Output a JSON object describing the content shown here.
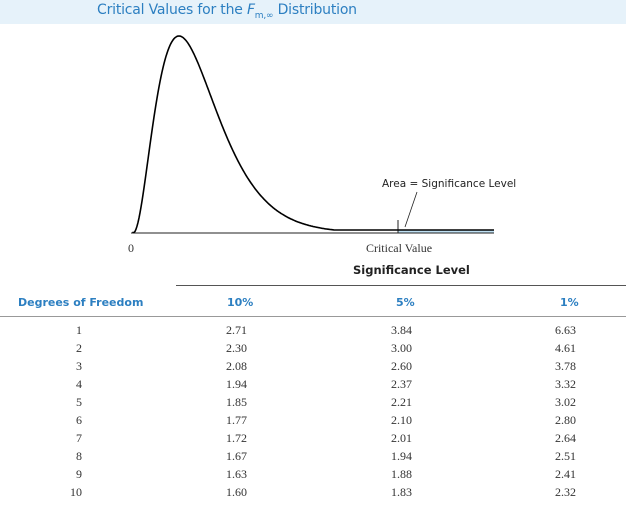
{
  "title": {
    "prefix": "Critical Values for the ",
    "symbol": "F",
    "subscript": "m,∞",
    "suffix": " Distribution"
  },
  "figure": {
    "zero_label": "0",
    "critical_value_label": "Critical Value",
    "area_label": "Area = Significance Level",
    "curve_color": "#000000",
    "shade_color": "#bfe0f3"
  },
  "table": {
    "super_header": "Significance Level",
    "df_header": "Degrees of Freedom",
    "columns": [
      "10%",
      "5%",
      "1%"
    ],
    "rows": [
      {
        "df": "1",
        "values": [
          "2.71",
          "3.84",
          "6.63"
        ]
      },
      {
        "df": "2",
        "values": [
          "2.30",
          "3.00",
          "4.61"
        ]
      },
      {
        "df": "3",
        "values": [
          "2.08",
          "2.60",
          "3.78"
        ]
      },
      {
        "df": "4",
        "values": [
          "1.94",
          "2.37",
          "3.32"
        ]
      },
      {
        "df": "5",
        "values": [
          "1.85",
          "2.21",
          "3.02"
        ]
      },
      {
        "df": "6",
        "values": [
          "1.77",
          "2.10",
          "2.80"
        ]
      },
      {
        "df": "7",
        "values": [
          "1.72",
          "2.01",
          "2.64"
        ]
      },
      {
        "df": "8",
        "values": [
          "1.67",
          "1.94",
          "2.51"
        ]
      },
      {
        "df": "9",
        "values": [
          "1.63",
          "1.88",
          "2.41"
        ]
      },
      {
        "df": "10",
        "values": [
          "1.60",
          "1.83",
          "2.32"
        ]
      }
    ]
  },
  "accent_color": "#2c7fc1"
}
